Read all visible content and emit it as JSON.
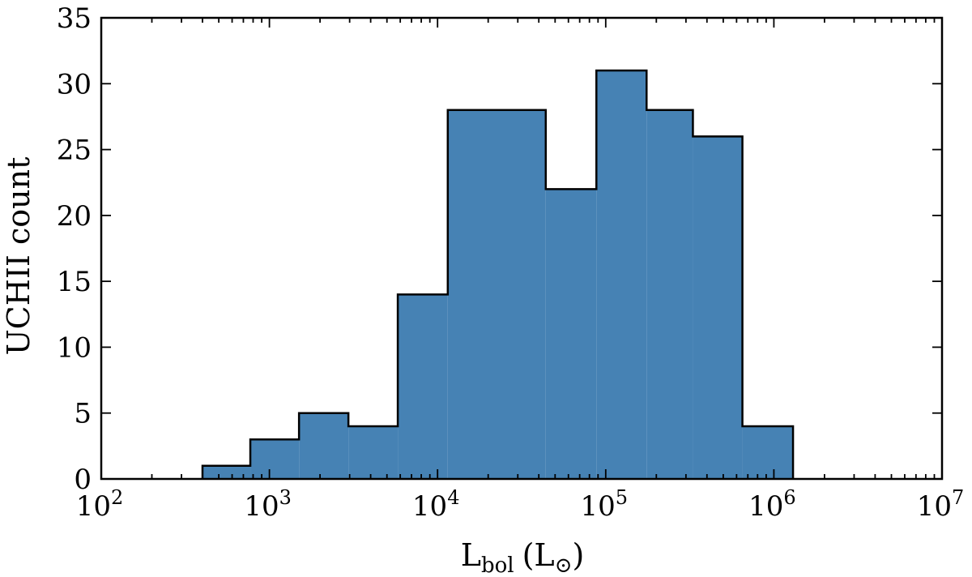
{
  "chart_data": {
    "type": "bar",
    "histogram": true,
    "x_scale": "log",
    "xlim": [
      100,
      10000000
    ],
    "ylim": [
      0,
      35
    ],
    "y_ticks": [
      0,
      5,
      10,
      15,
      20,
      25,
      30,
      35
    ],
    "x_ticks": [
      {
        "base": "10",
        "exp": "2"
      },
      {
        "base": "10",
        "exp": "3"
      },
      {
        "base": "10",
        "exp": "4"
      },
      {
        "base": "10",
        "exp": "5"
      },
      {
        "base": "10",
        "exp": "6"
      },
      {
        "base": "10",
        "exp": "7"
      }
    ],
    "bin_edges": [
      400,
      770,
      1500,
      2950,
      5800,
      11500,
      44000,
      88000,
      175000,
      330000,
      650000,
      1300000
    ],
    "values": [
      1,
      3,
      5,
      4,
      14,
      28,
      22,
      31,
      28,
      26,
      4
    ],
    "xlabel": {
      "main": "L",
      "sub": "bol",
      "unit": "(L",
      "unit_sub": "⊙",
      "close": ")"
    },
    "ylabel": "UCHII count",
    "bar_color": "#4682b4",
    "edge_color": "#000000",
    "grid": false
  }
}
